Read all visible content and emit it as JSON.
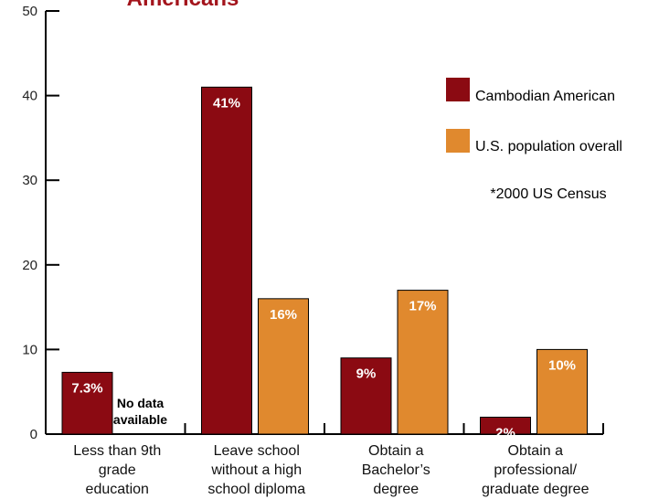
{
  "chart_data": {
    "type": "bar",
    "title": "Americans",
    "categories": [
      [
        "Less than 9th",
        "grade",
        "education"
      ],
      [
        "Leave school",
        "without a high",
        "school diploma"
      ],
      [
        "Obtain a",
        "Bachelor’s",
        "degree"
      ],
      [
        "Obtain a",
        "professional/",
        "graduate degree"
      ]
    ],
    "series": [
      {
        "name": "Cambodian American",
        "color": "#8b0a12",
        "values": [
          7.3,
          41,
          9,
          2
        ],
        "labels": [
          "7.3%",
          "41%",
          "9%",
          "2%"
        ]
      },
      {
        "name": "U.S. population overall",
        "color": "#e0892e",
        "values": [
          null,
          16,
          17,
          10
        ],
        "labels": [
          null,
          "16%",
          "17%",
          "10%"
        ]
      }
    ],
    "missing_note": [
      "No data",
      "available"
    ],
    "note": "*2000 US Census",
    "ylim": [
      0,
      50
    ],
    "yticks": [
      0,
      10,
      20,
      30,
      40,
      50
    ],
    "grid": false,
    "legend_position": "top-right"
  },
  "colors": {
    "title": "#a3141c",
    "axis": "#000000",
    "bar_outline": "#000000",
    "bar_label": "#ffffff"
  }
}
